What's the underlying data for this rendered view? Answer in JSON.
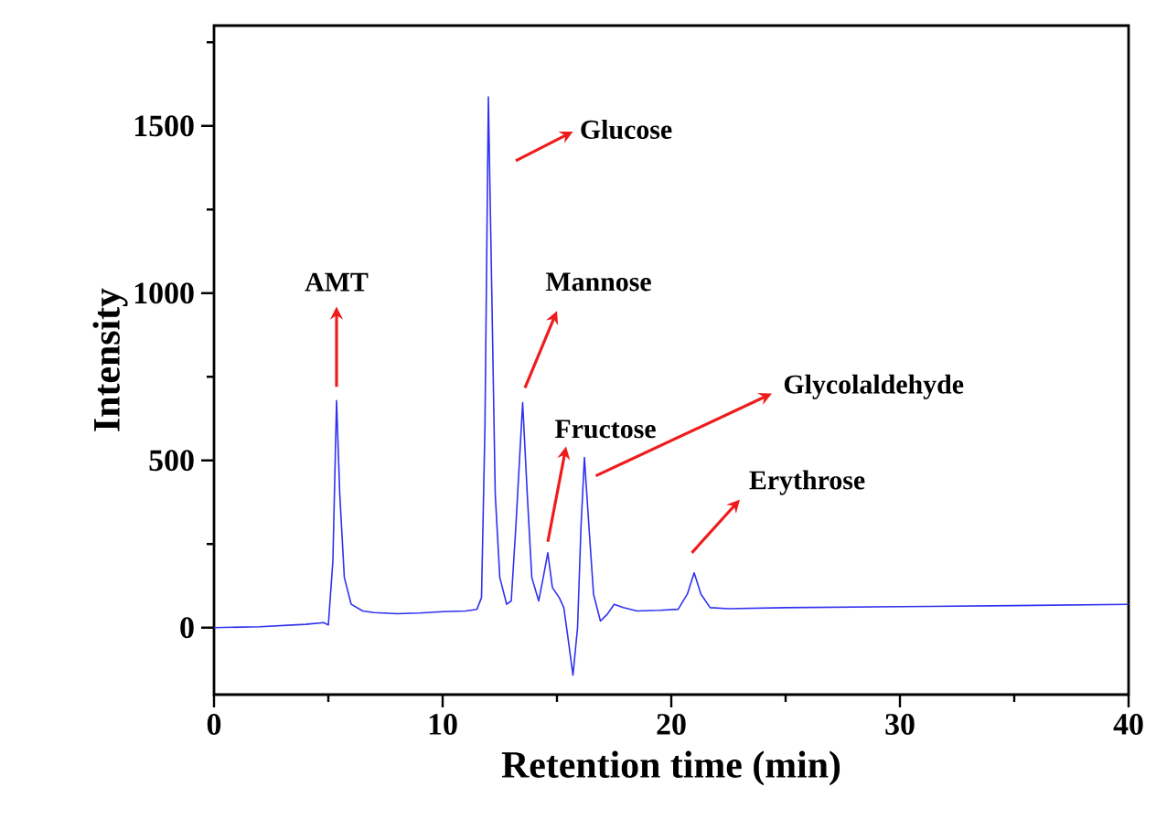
{
  "chart_data": {
    "type": "line",
    "xlabel": "Retention time (min)",
    "ylabel": "Intensity",
    "xlim": [
      0,
      40
    ],
    "ylim": [
      -200,
      1800
    ],
    "xticks": [
      0,
      {
        "value": 5,
        "label": null
      },
      10,
      {
        "value": 15,
        "label": null
      },
      20,
      {
        "value": 25,
        "label": null
      },
      30,
      {
        "value": 35,
        "label": null
      },
      40
    ],
    "yticks": [
      0,
      {
        "value": 250,
        "label": null
      },
      500,
      {
        "value": 750,
        "label": null
      },
      1000,
      {
        "value": 1250,
        "label": null
      },
      1500,
      {
        "value": 1750,
        "label": null
      }
    ],
    "grid": false,
    "marker": "none",
    "line_style": "solid",
    "series": [
      {
        "color": "#3030f0",
        "x": [
          0,
          2,
          4,
          4.8,
          5.0,
          5.2,
          5.36,
          5.5,
          5.7,
          6.0,
          6.5,
          7,
          8,
          9,
          10,
          11,
          11.5,
          11.7,
          11.85,
          12.0,
          12.15,
          12.3,
          12.5,
          12.8,
          13.0,
          13.2,
          13.5,
          13.7,
          13.9,
          14.2,
          14.4,
          14.6,
          14.8,
          15.1,
          15.3,
          15.5,
          15.7,
          15.9,
          16.05,
          16.2,
          16.4,
          16.6,
          16.9,
          17.2,
          17.5,
          17.9,
          18.5,
          19.5,
          20.3,
          20.7,
          21.0,
          21.3,
          21.7,
          22.5,
          25,
          30,
          35,
          40
        ],
        "values": [
          0,
          3,
          10,
          15,
          8,
          200,
          679,
          400,
          150,
          70,
          50,
          45,
          42,
          44,
          48,
          50,
          55,
          90,
          600,
          1587,
          1000,
          400,
          150,
          70,
          80,
          300,
          673,
          400,
          150,
          80,
          150,
          224,
          120,
          90,
          60,
          -40,
          -142,
          0,
          300,
          509,
          300,
          100,
          20,
          40,
          70,
          60,
          50,
          52,
          55,
          100,
          164,
          100,
          60,
          57,
          60,
          63,
          66,
          70
        ]
      }
    ],
    "annotations": [
      "AMT",
      "Glucose",
      "Mannose",
      "Fructose",
      "Glycolaldehyde",
      "Erythrose"
    ]
  }
}
